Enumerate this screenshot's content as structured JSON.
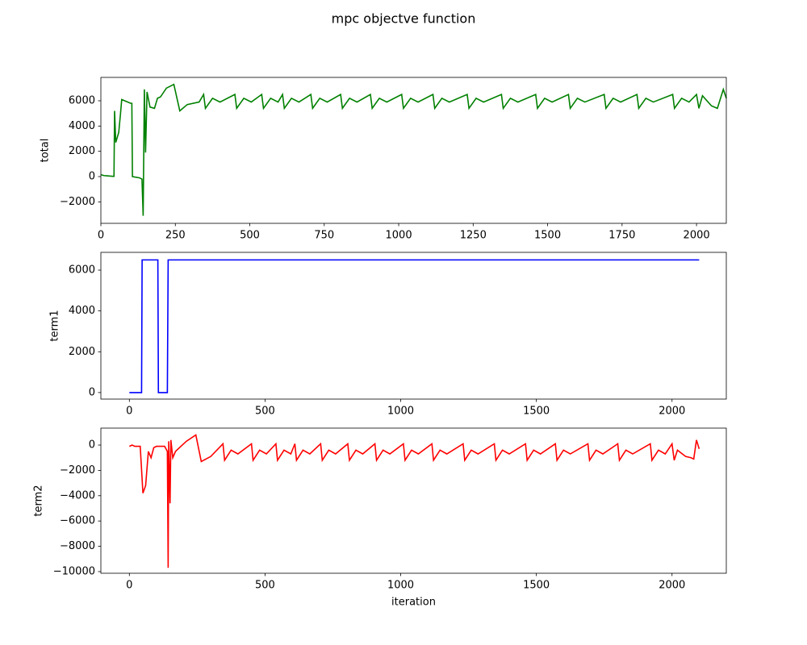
{
  "title": "mpc objectve function",
  "chart_data": [
    {
      "type": "line",
      "ylabel": "total",
      "xlim": [
        0,
        2100
      ],
      "xticks": [
        0,
        250,
        500,
        750,
        1000,
        1250,
        1500,
        1750,
        2000
      ],
      "ylim": [
        -3700,
        7850
      ],
      "yticks": [
        {
          "value": -2000,
          "label": "−2000"
        },
        0,
        2000,
        4000,
        6000
      ],
      "series": [
        {
          "name": "total",
          "color": "#008000",
          "x": [
            0,
            10,
            20,
            40,
            44,
            46,
            50,
            60,
            66,
            70,
            80,
            100,
            104,
            106,
            130,
            138,
            142,
            146,
            150,
            155,
            165,
            180,
            190,
            200,
            220,
            245,
            265,
            290,
            330,
            345,
            351,
            375,
            400,
            450,
            456,
            480,
            505,
            540,
            546,
            570,
            595,
            610,
            616,
            640,
            665,
            705,
            711,
            735,
            760,
            805,
            811,
            835,
            860,
            905,
            911,
            935,
            960,
            1010,
            1016,
            1040,
            1065,
            1115,
            1121,
            1145,
            1170,
            1230,
            1236,
            1260,
            1285,
            1345,
            1351,
            1375,
            1400,
            1460,
            1466,
            1490,
            1515,
            1570,
            1576,
            1600,
            1625,
            1690,
            1696,
            1720,
            1745,
            1800,
            1806,
            1830,
            1855,
            1920,
            1926,
            1950,
            1975,
            2000,
            2008,
            2020,
            2050,
            2070,
            2090,
            2100
          ],
          "values": [
            150,
            80,
            60,
            20,
            20,
            5200,
            2700,
            3500,
            5000,
            6100,
            6000,
            5800,
            5800,
            0,
            -100,
            -200,
            -3100,
            6900,
            1900,
            6700,
            5500,
            5400,
            6200,
            6300,
            7000,
            7300,
            5200,
            5700,
            5900,
            6500,
            5400,
            6200,
            5900,
            6500,
            5400,
            6200,
            5900,
            6500,
            5400,
            6200,
            5900,
            6500,
            5400,
            6200,
            5900,
            6500,
            5400,
            6200,
            5900,
            6500,
            5400,
            6200,
            5900,
            6500,
            5400,
            6200,
            5900,
            6500,
            5400,
            6200,
            5900,
            6500,
            5400,
            6200,
            5900,
            6500,
            5400,
            6200,
            5900,
            6500,
            5400,
            6200,
            5900,
            6500,
            5400,
            6200,
            5900,
            6500,
            5400,
            6200,
            5900,
            6500,
            5400,
            6200,
            5900,
            6500,
            5400,
            6200,
            5900,
            6500,
            5400,
            6200,
            5900,
            6500,
            5400,
            6400,
            5600,
            5400,
            6900,
            6200
          ]
        }
      ]
    },
    {
      "type": "line",
      "ylabel": "term1",
      "xlim": [
        -105,
        2200
      ],
      "xticks": [
        0,
        500,
        1000,
        1500,
        2000
      ],
      "ylim": [
        -320,
        6870
      ],
      "yticks": [
        0,
        2000,
        4000,
        6000
      ],
      "series": [
        {
          "name": "term1",
          "color": "#0000ff",
          "x": [
            0,
            45,
            47,
            105,
            107,
            140,
            143,
            2100
          ],
          "values": [
            0,
            0,
            6500,
            6500,
            0,
            0,
            6500,
            6500
          ]
        }
      ]
    },
    {
      "type": "line",
      "ylabel": "term2",
      "xlabel": "iteration",
      "xlim": [
        -105,
        2200
      ],
      "xticks": [
        0,
        500,
        1000,
        1500,
        2000
      ],
      "ylim": [
        -10130,
        1340
      ],
      "yticks": [
        {
          "value": -10000,
          "label": "−10000"
        },
        {
          "value": -8000,
          "label": "−8000"
        },
        {
          "value": -6000,
          "label": "−6000"
        },
        {
          "value": -4000,
          "label": "−4000"
        },
        {
          "value": -2000,
          "label": "−2000"
        },
        0
      ],
      "series": [
        {
          "name": "term2",
          "color": "#ff0000",
          "x": [
            0,
            10,
            20,
            40,
            50,
            60,
            70,
            80,
            90,
            100,
            130,
            140,
            143,
            145,
            150,
            153,
            160,
            170,
            190,
            210,
            245,
            265,
            300,
            345,
            351,
            375,
            400,
            450,
            456,
            480,
            505,
            540,
            546,
            570,
            595,
            610,
            616,
            640,
            665,
            705,
            711,
            735,
            760,
            805,
            811,
            835,
            860,
            905,
            911,
            935,
            960,
            1010,
            1016,
            1040,
            1065,
            1115,
            1121,
            1145,
            1170,
            1230,
            1236,
            1260,
            1285,
            1345,
            1351,
            1375,
            1400,
            1460,
            1466,
            1490,
            1515,
            1570,
            1576,
            1600,
            1625,
            1690,
            1696,
            1720,
            1745,
            1800,
            1806,
            1830,
            1855,
            1920,
            1926,
            1950,
            1975,
            2000,
            2008,
            2020,
            2050,
            2070,
            2080,
            2090,
            2100
          ],
          "values": [
            -100,
            0,
            -100,
            -100,
            -3800,
            -3200,
            -500,
            -1000,
            -200,
            -100,
            -100,
            -500,
            -9700,
            300,
            -4600,
            400,
            -1000,
            -500,
            -100,
            300,
            800,
            -1300,
            -900,
            100,
            -1200,
            -400,
            -700,
            100,
            -1200,
            -400,
            -700,
            100,
            -1200,
            -400,
            -700,
            100,
            -1200,
            -400,
            -700,
            100,
            -1200,
            -400,
            -700,
            100,
            -1200,
            -400,
            -700,
            100,
            -1200,
            -400,
            -700,
            100,
            -1200,
            -400,
            -700,
            100,
            -1200,
            -400,
            -700,
            100,
            -1200,
            -400,
            -700,
            100,
            -1200,
            -400,
            -700,
            100,
            -1200,
            -400,
            -700,
            100,
            -1200,
            -400,
            -700,
            100,
            -1200,
            -400,
            -700,
            100,
            -1200,
            -400,
            -700,
            100,
            -1200,
            -400,
            -700,
            100,
            -1200,
            -400,
            -900,
            -1000,
            -1100,
            400,
            -300
          ]
        }
      ]
    }
  ]
}
